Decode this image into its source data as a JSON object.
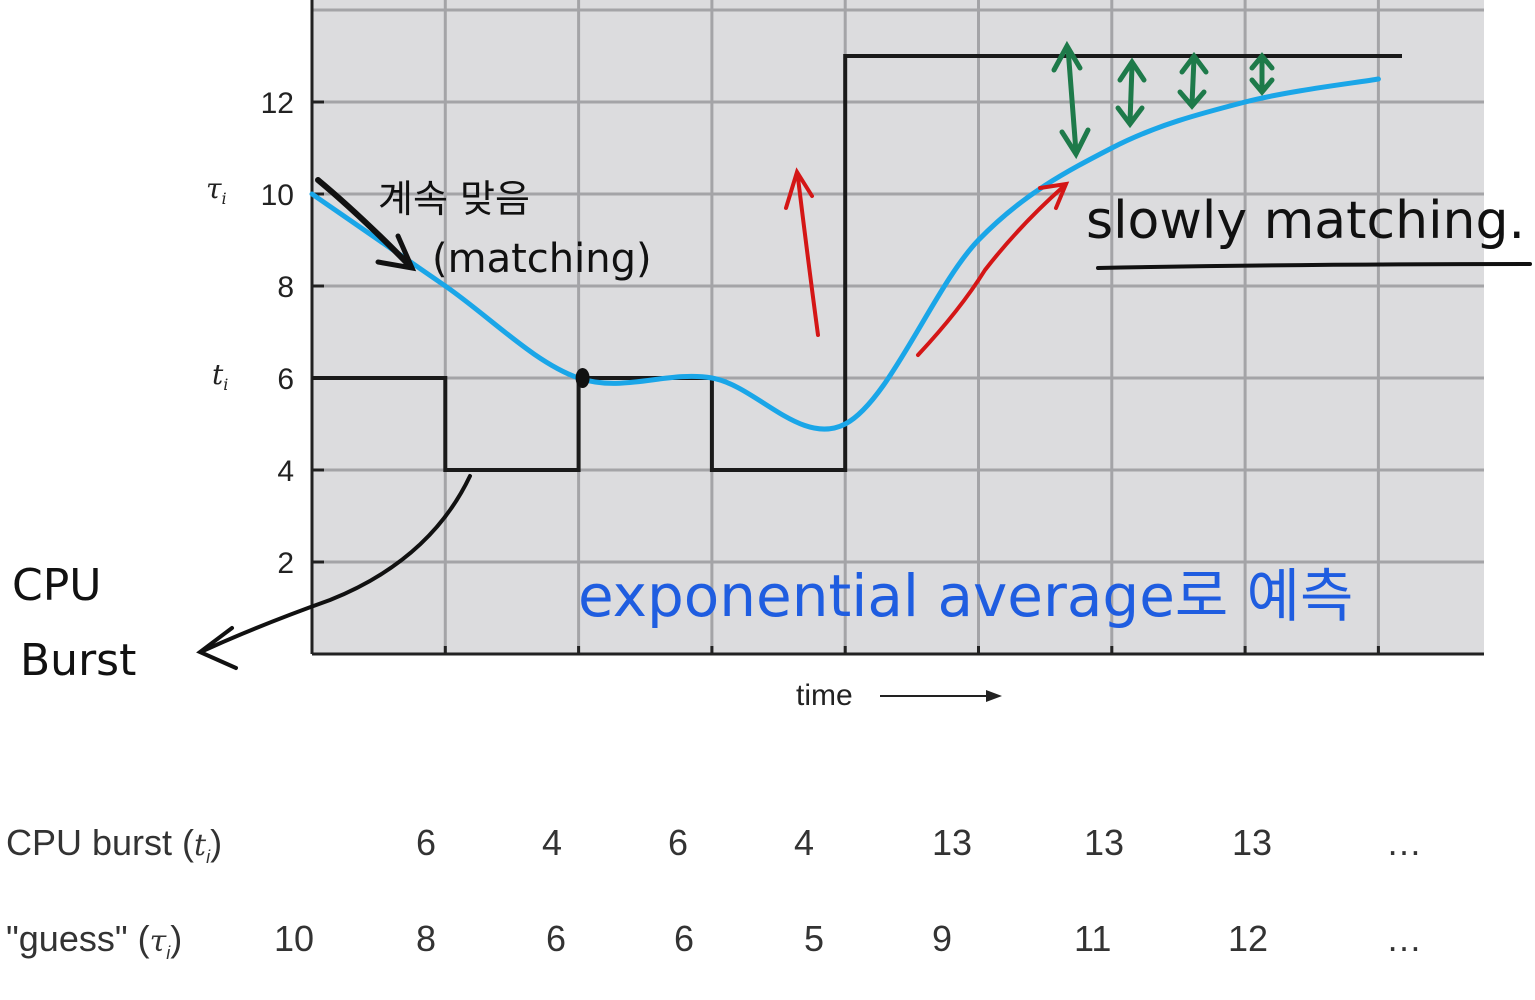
{
  "chart_data": {
    "type": "line",
    "x_label": "time",
    "y_ticks": [
      "2",
      "4",
      "6",
      "8",
      "10",
      "12"
    ],
    "y_range": [
      0,
      14
    ],
    "y_axis_symbols": {
      "tau": "τ",
      "t": "t",
      "subscript": "i"
    },
    "grid": true,
    "series": [
      {
        "name": "CPU burst (ti)",
        "style": "step",
        "color": "#1a1a1a",
        "x": [
          0,
          1,
          2,
          3,
          4,
          5,
          6,
          7
        ],
        "values": [
          6,
          4,
          6,
          4,
          13,
          13,
          13,
          13
        ]
      },
      {
        "name": "\"guess\" (τi)",
        "style": "smooth",
        "color": "#1aa6e8",
        "x": [
          0,
          1,
          2,
          3,
          4,
          5,
          6,
          7,
          8
        ],
        "values": [
          10,
          8,
          6,
          6,
          5,
          9,
          11,
          12,
          12.5
        ]
      }
    ],
    "annotations": {
      "korean_top": "계속 맞음",
      "matching_paren": "(matching)",
      "slowly_matching": "slowly matching.",
      "cpu_burst_line1": "CPU",
      "cpu_burst_line2": "Burst",
      "exponential": "exponential average로 예측"
    },
    "colors": {
      "background": "#dcdcde",
      "grid": "#a4a4a7",
      "burst": "#1a1a1a",
      "guess": "#1aa6e8",
      "red_note": "#d41616",
      "green_note": "#1e7a4a",
      "blue_note": "#1f5de0"
    }
  },
  "table": {
    "burst_label": "CPU burst (",
    "burst_var": "t",
    "burst_sub": "i",
    "burst_close": ")",
    "guess_label": "\"guess\" (",
    "guess_var": "τ",
    "guess_sub": "i",
    "guess_close": ")",
    "burst_values": [
      "6",
      "4",
      "6",
      "4",
      "13",
      "13",
      "13",
      "…"
    ],
    "guess_values": [
      "10",
      "8",
      "6",
      "6",
      "5",
      "9",
      "11",
      "12",
      "…"
    ]
  }
}
